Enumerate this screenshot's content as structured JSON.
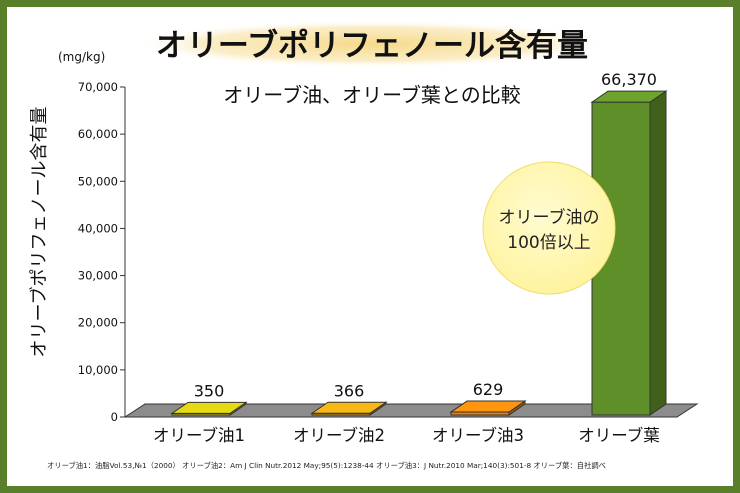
{
  "chart_data": {
    "type": "bar",
    "title": "オリーブポリフェノール含有量",
    "subtitle": "オリーブ油、オリーブ葉との比較",
    "unit_label": "(mg/kg)",
    "ylabel": "オリーブポリフェノール含有量",
    "ylim": [
      0,
      70000
    ],
    "yticks": [
      "0",
      "10,000",
      "20,000",
      "30,000",
      "40,000",
      "50,000",
      "60,000",
      "70,000"
    ],
    "ytick_values": [
      0,
      10000,
      20000,
      30000,
      40000,
      50000,
      60000,
      70000
    ],
    "grid": false,
    "categories": [
      "オリーブ油1",
      "オリーブ油2",
      "オリーブ油3",
      "オリーブ葉"
    ],
    "values": [
      350,
      366,
      629,
      66370
    ],
    "value_labels": [
      "350",
      "366",
      "629",
      "66,370"
    ],
    "colors": [
      "#c8be12",
      "#d8a012",
      "#e8820e",
      "#5f8f28"
    ],
    "annotation": [
      "オリーブ油の",
      "100倍以上"
    ],
    "footnote": "オリーブ油1：油脂Vol.53,№1（2000） オリーブ油2：Am J Clin Nutr.2012 May;95(5):1238-44 オリーブ油3：J Nutr.2010 Mar;140(3):501-8 オリーブ葉：自社調べ"
  }
}
